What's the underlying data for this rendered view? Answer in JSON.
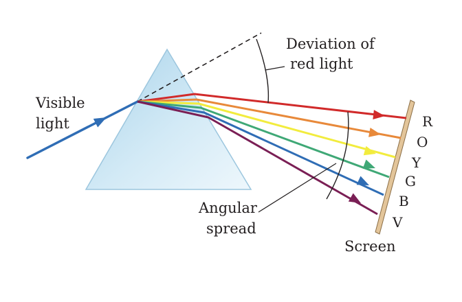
{
  "labels": {
    "visible_light": [
      "Visible",
      "light"
    ],
    "deviation": [
      "Deviation of",
      "red light"
    ],
    "angular_spread": [
      "Angular",
      "spread"
    ],
    "screen": "Screen"
  },
  "spectrum": [
    {
      "letter": "R",
      "color": "#d12a2a"
    },
    {
      "letter": "O",
      "color": "#e8893a"
    },
    {
      "letter": "Y",
      "color": "#f2ec3e"
    },
    {
      "letter": "G",
      "color": "#3fa876"
    },
    {
      "letter": "B",
      "color": "#2f6db5"
    },
    {
      "letter": "V",
      "color": "#7a1f55"
    }
  ],
  "colors": {
    "incident_ray": "#2f6db5",
    "prism": "#bfdff0",
    "screen": "#e3c59a"
  }
}
